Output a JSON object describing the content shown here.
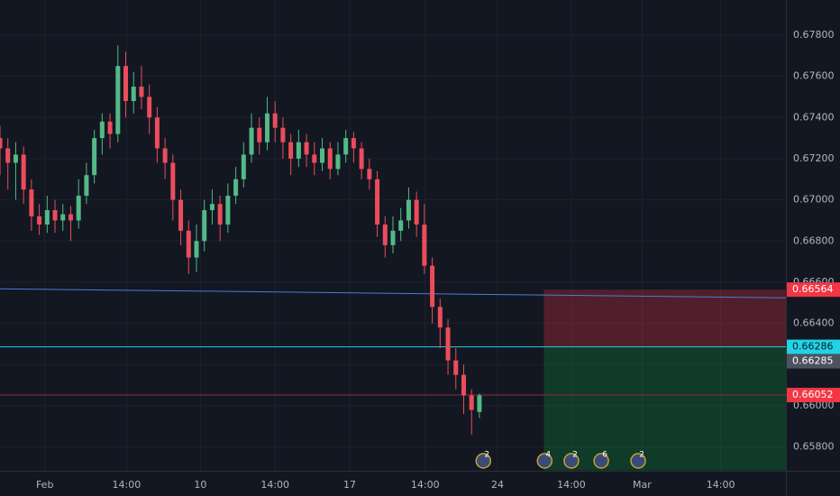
{
  "chart_data": {
    "type": "candlestick",
    "up_color": "#53b987",
    "down_color": "#eb4d5c",
    "grid": true,
    "xlim": [
      0,
      100
    ],
    "xticks": [
      {
        "value": 5.7,
        "label": "Feb"
      },
      {
        "value": 16.1,
        "label": "14:00"
      },
      {
        "value": 25.5,
        "label": "10"
      },
      {
        "value": 35,
        "label": "14:00"
      },
      {
        "value": 44.5,
        "label": "17"
      },
      {
        "value": 54.1,
        "label": "14:00"
      },
      {
        "value": 63.3,
        "label": "24"
      },
      {
        "value": 72.7,
        "label": "14:00"
      },
      {
        "value": 81.7,
        "label": "Mar"
      },
      {
        "value": 91.7,
        "label": "14:00"
      }
    ],
    "ylim": [
      0.656842,
      0.6797067
    ],
    "yticks": [
      {
        "value": 0.678,
        "label": "0.67800"
      },
      {
        "value": 0.676,
        "label": "0.67600"
      },
      {
        "value": 0.674,
        "label": "0.67400"
      },
      {
        "value": 0.672,
        "label": "0.67200"
      },
      {
        "value": 0.67,
        "label": "0.67000"
      },
      {
        "value": 0.668,
        "label": "0.66800"
      },
      {
        "value": 0.666,
        "label": "0.66600"
      },
      {
        "value": 0.664,
        "label": "0.66400"
      },
      {
        "value": 0.662,
        "label": "0.66200"
      },
      {
        "value": 0.66,
        "label": "0.66000"
      },
      {
        "value": 0.658,
        "label": "0.65800"
      }
    ],
    "x": [
      0,
      1,
      2,
      3,
      4,
      5,
      6,
      7,
      8,
      9,
      10,
      11,
      12,
      13,
      14,
      15,
      16,
      17,
      18,
      19,
      20,
      21,
      22,
      23,
      24,
      25,
      26,
      27,
      28,
      29,
      30,
      31,
      32,
      33,
      34,
      35,
      36,
      37,
      38,
      39,
      40,
      41,
      42,
      43,
      44,
      45,
      46,
      47,
      48,
      49,
      50,
      51,
      52,
      53,
      54,
      55,
      56,
      57,
      58,
      59,
      60,
      61
    ],
    "open": [
      0.673,
      0.6725,
      0.6718,
      0.6722,
      0.6705,
      0.6692,
      0.6688,
      0.6695,
      0.669,
      0.6693,
      0.669,
      0.6702,
      0.6712,
      0.673,
      0.6738,
      0.6732,
      0.6765,
      0.6748,
      0.6755,
      0.675,
      0.674,
      0.6725,
      0.6718,
      0.67,
      0.6685,
      0.6672,
      0.668,
      0.6695,
      0.6698,
      0.6688,
      0.6702,
      0.671,
      0.6722,
      0.6735,
      0.6728,
      0.6742,
      0.6735,
      0.6728,
      0.672,
      0.6728,
      0.6722,
      0.6718,
      0.6725,
      0.6715,
      0.6722,
      0.673,
      0.6725,
      0.6715,
      0.671,
      0.6688,
      0.6678,
      0.6685,
      0.669,
      0.67,
      0.6688,
      0.6668,
      0.6648,
      0.6638,
      0.6622,
      0.6615,
      0.6605,
      0.6597
    ],
    "high": [
      0.6736,
      0.673,
      0.6728,
      0.6726,
      0.671,
      0.6698,
      0.6702,
      0.67,
      0.6698,
      0.6697,
      0.671,
      0.6718,
      0.6734,
      0.6742,
      0.6742,
      0.6775,
      0.6772,
      0.6762,
      0.6765,
      0.6756,
      0.6745,
      0.673,
      0.6722,
      0.6705,
      0.669,
      0.6688,
      0.67,
      0.6705,
      0.6702,
      0.6708,
      0.6716,
      0.6728,
      0.6742,
      0.674,
      0.675,
      0.6748,
      0.674,
      0.6732,
      0.6734,
      0.6732,
      0.6728,
      0.673,
      0.6728,
      0.6728,
      0.6734,
      0.6733,
      0.6728,
      0.672,
      0.6714,
      0.6692,
      0.6692,
      0.6696,
      0.6706,
      0.6704,
      0.6698,
      0.6672,
      0.6652,
      0.6642,
      0.6628,
      0.662,
      0.6608,
      0.6606
    ],
    "low": [
      0.6712,
      0.6705,
      0.67,
      0.6698,
      0.6685,
      0.6683,
      0.6684,
      0.6684,
      0.6685,
      0.668,
      0.6686,
      0.6698,
      0.6708,
      0.6722,
      0.6725,
      0.6728,
      0.674,
      0.6742,
      0.6744,
      0.6732,
      0.6718,
      0.671,
      0.669,
      0.6678,
      0.6664,
      0.6665,
      0.6675,
      0.6688,
      0.668,
      0.6684,
      0.6698,
      0.6706,
      0.6718,
      0.6722,
      0.6724,
      0.6728,
      0.672,
      0.6712,
      0.6716,
      0.6716,
      0.6712,
      0.6714,
      0.671,
      0.6712,
      0.6718,
      0.6718,
      0.671,
      0.6705,
      0.6682,
      0.6672,
      0.6674,
      0.668,
      0.6686,
      0.6682,
      0.6664,
      0.664,
      0.6628,
      0.6615,
      0.6608,
      0.6596,
      0.6586,
      0.6594
    ],
    "close": [
      0.6725,
      0.6718,
      0.6722,
      0.6705,
      0.6692,
      0.6688,
      0.6695,
      0.669,
      0.6693,
      0.669,
      0.6702,
      0.6712,
      0.673,
      0.6738,
      0.6732,
      0.6765,
      0.6748,
      0.6755,
      0.675,
      0.674,
      0.6725,
      0.6718,
      0.67,
      0.6685,
      0.6672,
      0.668,
      0.6695,
      0.6698,
      0.6688,
      0.6702,
      0.671,
      0.6722,
      0.6735,
      0.6728,
      0.6742,
      0.6735,
      0.6728,
      0.672,
      0.6728,
      0.6722,
      0.6718,
      0.6725,
      0.6715,
      0.6722,
      0.673,
      0.6725,
      0.6715,
      0.671,
      0.6688,
      0.6678,
      0.6685,
      0.669,
      0.67,
      0.6688,
      0.6668,
      0.6648,
      0.6638,
      0.6622,
      0.6615,
      0.6605,
      0.6598,
      0.6605
    ],
    "trendline": {
      "x": [
        0,
        100
      ],
      "y": [
        0.66568,
        0.66524
      ],
      "color": "#4a7cdc"
    },
    "hlines": [
      {
        "value": 0.66286,
        "color": "#22d3e6"
      },
      {
        "value": 0.66052,
        "color": "#8c2f3a"
      }
    ],
    "position": {
      "start_x": 69.2,
      "entry": 0.66286,
      "stop": 0.66564,
      "target": 0.65686
    },
    "price_labels": [
      {
        "value": 0.66564,
        "label": "0.66564",
        "color": "#f23645"
      },
      {
        "value": 0.66286,
        "label": "0.66286",
        "color": "#22d3e6"
      },
      {
        "value": 0.66285,
        "label": "0.66285",
        "color": "#4c525e"
      },
      {
        "value": 0.66052,
        "label": "0.66052",
        "color": "#f23645"
      }
    ],
    "events": [
      {
        "x": 61.5,
        "label": "2"
      },
      {
        "x": 69.3,
        "label": "4"
      },
      {
        "x": 72.7,
        "label": "2"
      },
      {
        "x": 76.5,
        "label": "6"
      },
      {
        "x": 81.2,
        "label": "2"
      }
    ]
  }
}
